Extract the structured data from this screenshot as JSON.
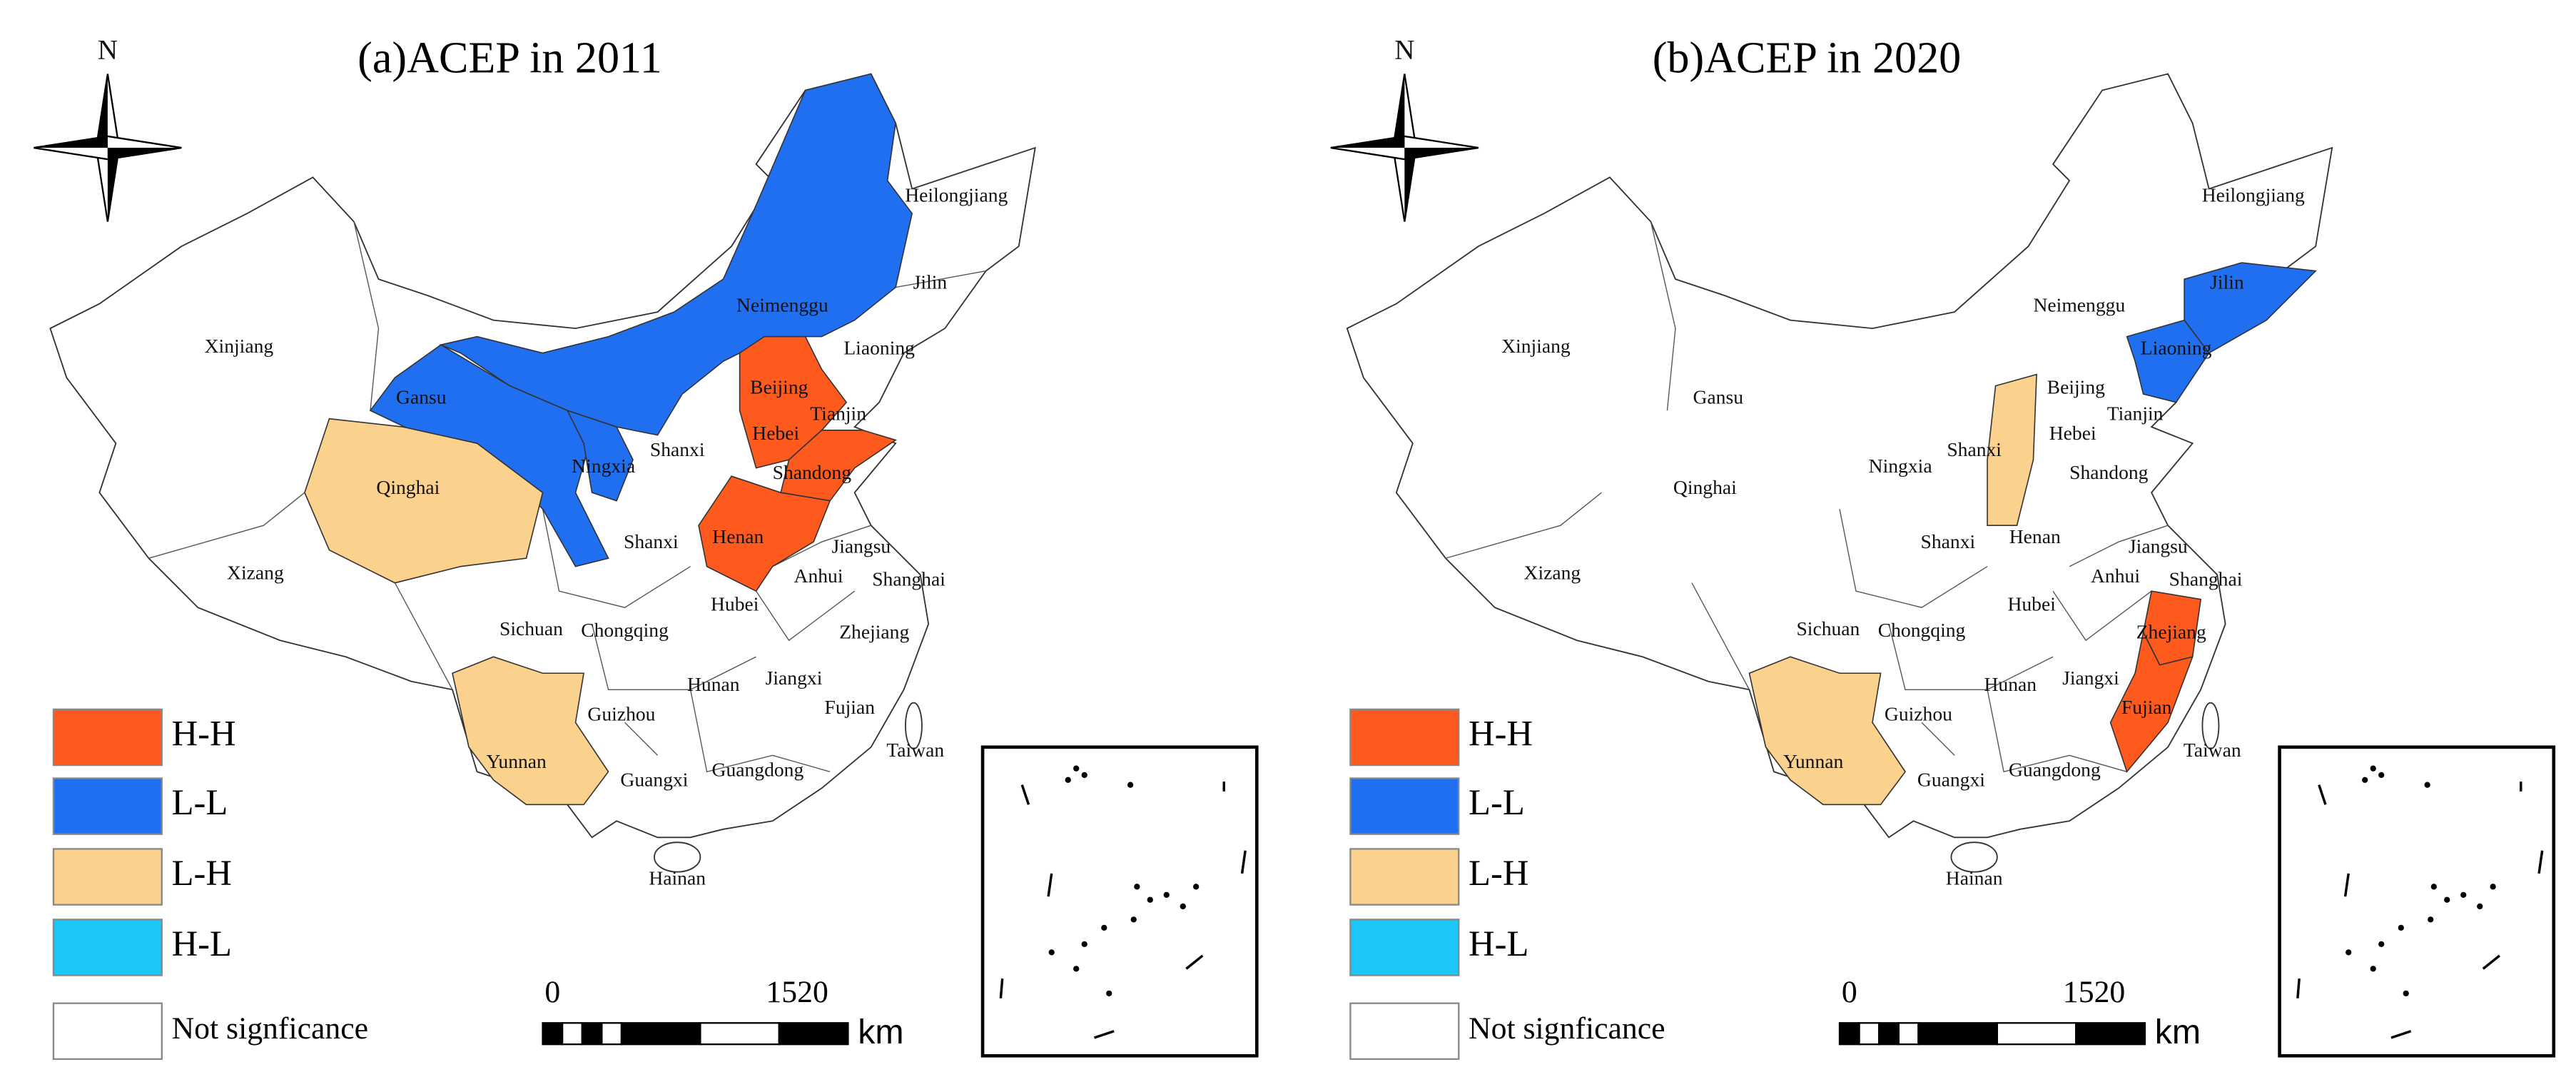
{
  "north": "N",
  "legend": [
    {
      "label": "H-H",
      "color": "#fe5a1d"
    },
    {
      "label": "L-L",
      "color": "#1f6ff0"
    },
    {
      "label": "L-H",
      "color": "#fbd18e"
    },
    {
      "label": "H-L",
      "color": "#1cc6f7"
    },
    {
      "label": "Not signficance",
      "color": "#ffffff"
    }
  ],
  "scale_bar": {
    "start": "0",
    "end": "1520",
    "unit": "km"
  },
  "maps": [
    {
      "title": "(a)ACEP in 2011",
      "regions": [
        {
          "name": "Heilongjiang",
          "class": "Not signficance"
        },
        {
          "name": "Jilin",
          "class": "Not signficance"
        },
        {
          "name": "Liaoning",
          "class": "Not signficance"
        },
        {
          "name": "Neimenggu",
          "class": "L-L"
        },
        {
          "name": "Xinjiang",
          "class": "Not signficance"
        },
        {
          "name": "Gansu",
          "class": "L-L"
        },
        {
          "name": "Beijing",
          "class": "H-H"
        },
        {
          "name": "Tianjin",
          "class": "Not signficance"
        },
        {
          "name": "Hebei",
          "class": "H-H"
        },
        {
          "name": "Ningxia",
          "class": "L-L"
        },
        {
          "name": "Shanxi",
          "class": "Not signficance"
        },
        {
          "name": "Shandong",
          "class": "H-H"
        },
        {
          "name": "Qinghai",
          "class": "L-H"
        },
        {
          "name": "Shanxi",
          "class": "Not signficance"
        },
        {
          "name": "Henan",
          "class": "H-H"
        },
        {
          "name": "Jiangsu",
          "class": "Not signficance"
        },
        {
          "name": "Anhui",
          "class": "Not signficance"
        },
        {
          "name": "Shanghai",
          "class": "Not signficance"
        },
        {
          "name": "Xizang",
          "class": "Not signficance"
        },
        {
          "name": "Sichuan",
          "class": "Not signficance"
        },
        {
          "name": "Chongqing",
          "class": "Not signficance"
        },
        {
          "name": "Hubei",
          "class": "Not signficance"
        },
        {
          "name": "Zhejiang",
          "class": "Not signficance"
        },
        {
          "name": "Hunan",
          "class": "Not signficance"
        },
        {
          "name": "Jiangxi",
          "class": "Not signficance"
        },
        {
          "name": "Fujian",
          "class": "Not signficance"
        },
        {
          "name": "Guizhou",
          "class": "Not signficance"
        },
        {
          "name": "Yunnan",
          "class": "L-H"
        },
        {
          "name": "Taiwan",
          "class": "Not signficance"
        },
        {
          "name": "Guangxi",
          "class": "Not signficance"
        },
        {
          "name": "Guangdong",
          "class": "Not signficance"
        },
        {
          "name": "Hainan",
          "class": "Not signficance"
        }
      ]
    },
    {
      "title": "(b)ACEP in 2020",
      "regions": [
        {
          "name": "Heilongjiang",
          "class": "Not signficance"
        },
        {
          "name": "Jilin",
          "class": "L-L"
        },
        {
          "name": "Liaoning",
          "class": "L-L"
        },
        {
          "name": "Neimenggu",
          "class": "Not signficance"
        },
        {
          "name": "Xinjiang",
          "class": "Not signficance"
        },
        {
          "name": "Gansu",
          "class": "Not signficance"
        },
        {
          "name": "Beijing",
          "class": "Not signficance"
        },
        {
          "name": "Tianjin",
          "class": "Not signficance"
        },
        {
          "name": "Hebei",
          "class": "Not signficance"
        },
        {
          "name": "Ningxia",
          "class": "Not signficance"
        },
        {
          "name": "Shanxi",
          "class": "L-H"
        },
        {
          "name": "Shandong",
          "class": "Not signficance"
        },
        {
          "name": "Qinghai",
          "class": "Not signficance"
        },
        {
          "name": "Shanxi",
          "class": "Not signficance"
        },
        {
          "name": "Henan",
          "class": "Not signficance"
        },
        {
          "name": "Jiangsu",
          "class": "Not signficance"
        },
        {
          "name": "Anhui",
          "class": "Not signficance"
        },
        {
          "name": "Shanghai",
          "class": "Not signficance"
        },
        {
          "name": "Xizang",
          "class": "Not signficance"
        },
        {
          "name": "Sichuan",
          "class": "Not signficance"
        },
        {
          "name": "Chongqing",
          "class": "Not signficance"
        },
        {
          "name": "Hubei",
          "class": "Not signficance"
        },
        {
          "name": "Zhejiang",
          "class": "H-H"
        },
        {
          "name": "Hunan",
          "class": "Not signficance"
        },
        {
          "name": "Jiangxi",
          "class": "Not signficance"
        },
        {
          "name": "Fujian",
          "class": "H-H"
        },
        {
          "name": "Guizhou",
          "class": "Not signficance"
        },
        {
          "name": "Yunnan",
          "class": "L-H"
        },
        {
          "name": "Taiwan",
          "class": "Not signficance"
        },
        {
          "name": "Guangxi",
          "class": "Not signficance"
        },
        {
          "name": "Guangdong",
          "class": "Not signficance"
        },
        {
          "name": "Hainan",
          "class": "Not signficance"
        }
      ]
    }
  ]
}
